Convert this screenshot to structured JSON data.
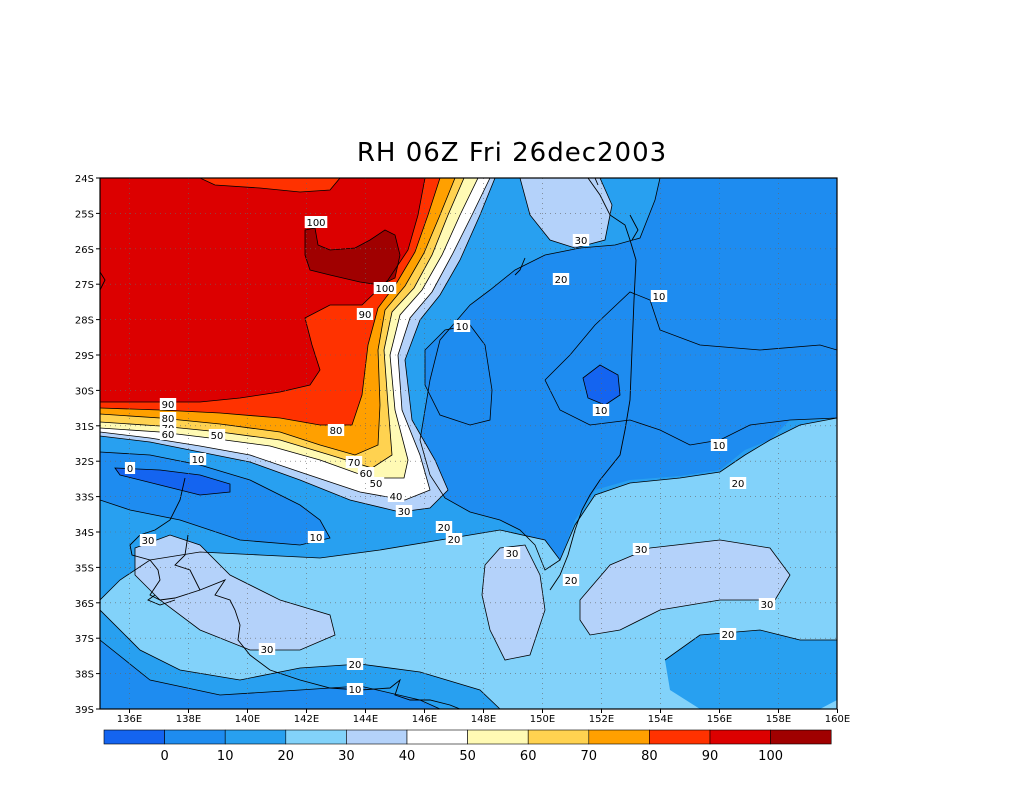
{
  "title": "RH 06Z Fri 26dec2003",
  "lat_labels": [
    "24S",
    "25S",
    "26S",
    "27S",
    "28S",
    "29S",
    "30S",
    "31S",
    "32S",
    "33S",
    "34S",
    "35S",
    "36S",
    "37S",
    "38S",
    "39S"
  ],
  "lon_labels": [
    "136E",
    "138E",
    "140E",
    "142E",
    "144E",
    "146E",
    "148E",
    "150E",
    "152E",
    "154E",
    "156E",
    "158E",
    "160E"
  ],
  "colorbar": {
    "colors": [
      "#1464f0",
      "#1e8cf0",
      "#28a0f0",
      "#82d2fa",
      "#b4d2fa",
      "#ffffff",
      "#fffab4",
      "#ffd250",
      "#ffa000",
      "#ff3200",
      "#dc0000",
      "#a00000"
    ],
    "labels": [
      "0",
      "10",
      "20",
      "30",
      "40",
      "50",
      "60",
      "70",
      "80",
      "90",
      "100"
    ]
  },
  "contour_labels": [
    {
      "text": "100"
    },
    {
      "text": "100"
    },
    {
      "text": "90"
    },
    {
      "text": "90"
    },
    {
      "text": "80"
    },
    {
      "text": "70"
    },
    {
      "text": "60"
    },
    {
      "text": "80"
    },
    {
      "text": "70"
    },
    {
      "text": "60"
    },
    {
      "text": "50"
    },
    {
      "text": "50"
    },
    {
      "text": "40"
    },
    {
      "text": "30"
    },
    {
      "text": "20"
    },
    {
      "text": "20"
    },
    {
      "text": "10"
    },
    {
      "text": "0"
    },
    {
      "text": "10"
    },
    {
      "text": "30"
    },
    {
      "text": "10"
    },
    {
      "text": "30"
    },
    {
      "text": "20"
    },
    {
      "text": "10"
    },
    {
      "text": "10"
    },
    {
      "text": "10"
    },
    {
      "text": "20"
    },
    {
      "text": "30"
    },
    {
      "text": "20"
    },
    {
      "text": "30"
    },
    {
      "text": "30"
    },
    {
      "text": "20"
    },
    {
      "text": "30"
    },
    {
      "text": "20"
    },
    {
      "text": "10"
    }
  ]
}
